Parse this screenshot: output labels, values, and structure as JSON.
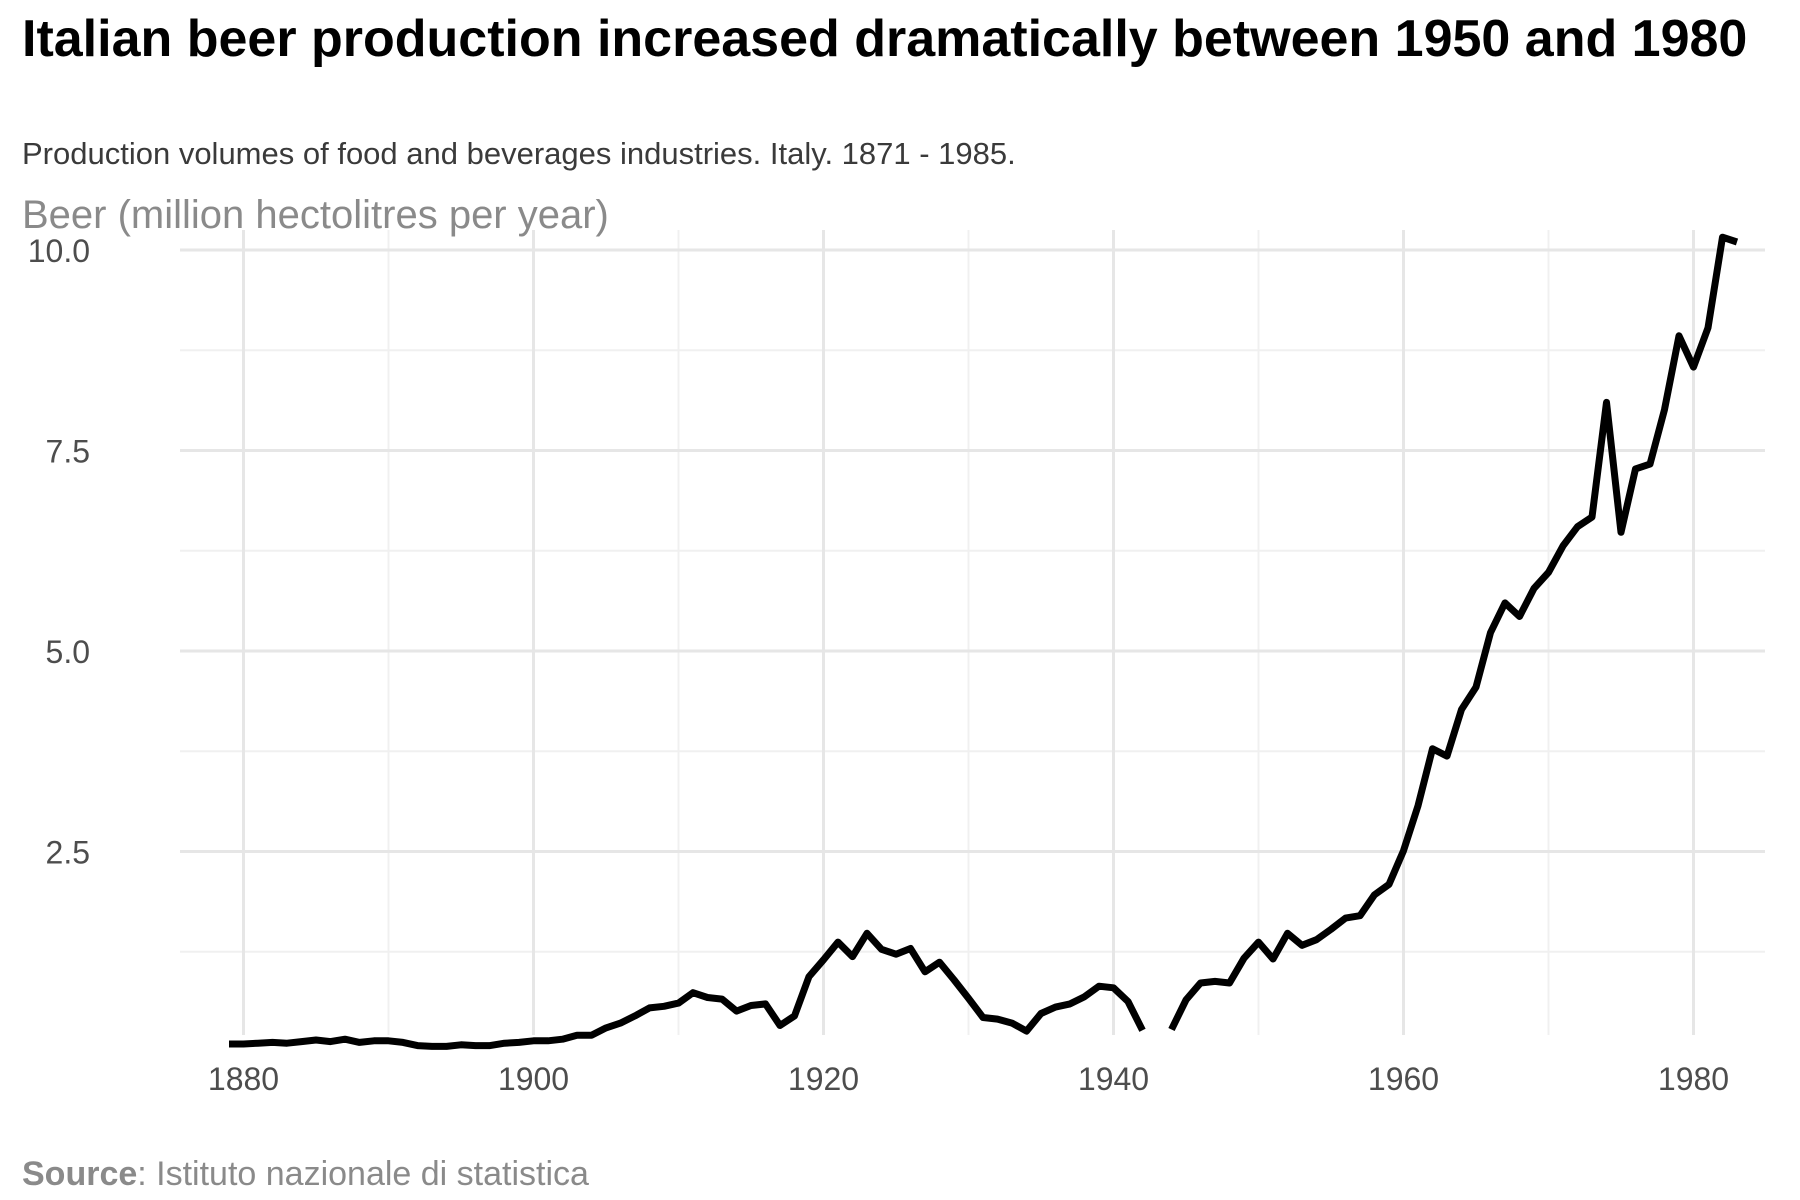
{
  "title": "Italian beer production increased dramatically between 1950 and 1980",
  "subtitle": "Production volumes of food and beverages industries. Italy. 1871 - 1985.",
  "caption": {
    "source_label": "Source",
    "source_text": ": Istituto nazionale di statistica"
  },
  "colors": {
    "line": "#000000",
    "grid_major": "#e6e6e6",
    "grid_minor": "#f0f0f0",
    "axis_text": "#4d4d4d",
    "ylabel": "#8a8a8a"
  },
  "chart_data": {
    "type": "line",
    "title": "Italian beer production increased dramatically between 1950 and 1980",
    "subtitle": "Production volumes of food and beverages industries. Italy. 1871 - 1985.",
    "xlabel": "",
    "ylabel": "Beer (million hectolitres per year)",
    "xlim": [
      1870,
      1985
    ],
    "ylim": [
      0,
      10
    ],
    "x_ticks": [
      1880,
      1900,
      1920,
      1940,
      1960,
      1980
    ],
    "x_tick_labels": [
      "1880",
      "1900",
      "1920",
      "1940",
      "1960",
      "1980"
    ],
    "y_ticks": [
      2.5,
      5.0,
      7.5,
      10.0
    ],
    "y_tick_labels": [
      "2.5",
      "5.0",
      "7.5",
      "10.0"
    ],
    "grid": true,
    "legend": "none",
    "series": [
      {
        "segments": [
          {
            "x": [
              1879,
              1880,
              1881,
              1882,
              1883,
              1884,
              1885,
              1886,
              1887,
              1888,
              1889,
              1890,
              1891,
              1892,
              1893,
              1894,
              1895,
              1896,
              1897,
              1898,
              1899,
              1900,
              1901,
              1902,
              1903,
              1904,
              1905,
              1906,
              1907,
              1908,
              1909,
              1910,
              1911,
              1912,
              1913,
              1914,
              1915,
              1916,
              1917,
              1918,
              1919,
              1920,
              1921,
              1922,
              1923,
              1924,
              1925,
              1926,
              1927,
              1928,
              1929,
              1930,
              1931,
              1932,
              1933,
              1934,
              1935,
              1936,
              1937,
              1938,
              1939,
              1940,
              1941,
              1942
            ],
            "y": [
              0.1,
              0.1,
              0.11,
              0.12,
              0.11,
              0.13,
              0.15,
              0.13,
              0.16,
              0.12,
              0.14,
              0.14,
              0.12,
              0.08,
              0.07,
              0.07,
              0.09,
              0.08,
              0.08,
              0.11,
              0.12,
              0.14,
              0.14,
              0.16,
              0.21,
              0.21,
              0.3,
              0.36,
              0.45,
              0.55,
              0.57,
              0.61,
              0.74,
              0.68,
              0.66,
              0.51,
              0.58,
              0.6,
              0.33,
              0.45,
              0.94,
              1.15,
              1.37,
              1.19,
              1.48,
              1.28,
              1.22,
              1.29,
              1.0,
              1.12,
              0.9,
              0.67,
              0.43,
              0.41,
              0.36,
              0.26,
              0.48,
              0.56,
              0.6,
              0.69,
              0.82,
              0.8,
              0.63,
              0.27
            ]
          },
          {
            "x": [
              1944,
              1945,
              1946,
              1947,
              1948,
              1949,
              1950,
              1951,
              1952,
              1953,
              1954,
              1955,
              1956,
              1957,
              1958,
              1959,
              1960,
              1961,
              1962,
              1963,
              1964,
              1965,
              1966,
              1967,
              1968,
              1969,
              1970,
              1971,
              1972,
              1973,
              1974,
              1975,
              1976,
              1977,
              1978,
              1979,
              1980,
              1981,
              1982,
              1983
            ],
            "y": [
              0.28,
              0.65,
              0.86,
              0.88,
              0.86,
              1.17,
              1.37,
              1.16,
              1.48,
              1.33,
              1.4,
              1.53,
              1.67,
              1.7,
              1.96,
              2.09,
              2.51,
              3.07,
              3.78,
              3.69,
              4.27,
              4.55,
              5.23,
              5.6,
              5.43,
              5.78,
              5.98,
              6.31,
              6.55,
              6.67,
              8.1,
              6.48,
              7.27,
              7.33,
              8.01,
              8.93,
              8.54,
              9.03,
              10.16,
              10.1
            ]
          }
        ]
      }
    ]
  }
}
